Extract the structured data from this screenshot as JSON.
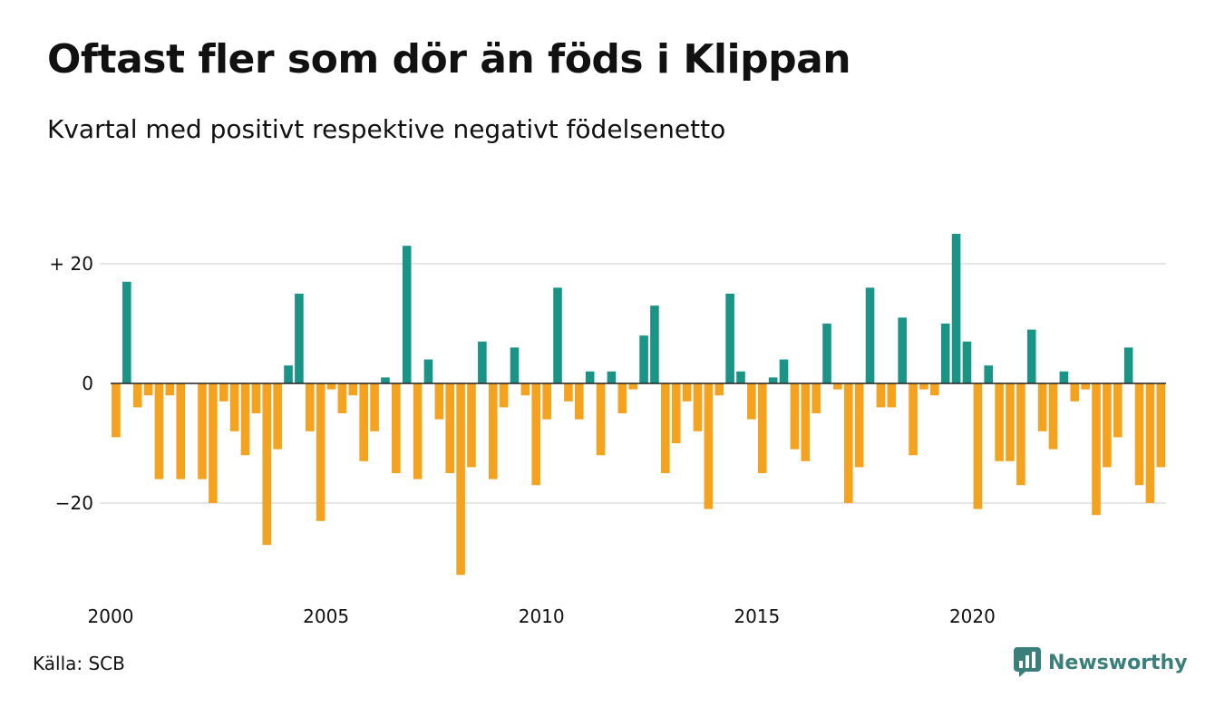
{
  "header": {
    "title": "Oftast fler som dör än föds i Klippan",
    "subtitle": "Kvartal med positivt respektive negativt födelsenetto"
  },
  "footer": {
    "source": "Källa: SCB",
    "brand": "Newsworthy",
    "brand_icon": "newsworthy-logo-icon"
  },
  "chart_data": {
    "type": "bar",
    "title": "Oftast fler som dör än föds i Klippan",
    "subtitle": "Kvartal med positivt respektive negativt födelsenetto",
    "xlabel": "",
    "ylabel": "",
    "x_start": "2000 Q1",
    "ylim": [
      -33,
      27
    ],
    "y_ticks": [
      20,
      0,
      -20
    ],
    "y_tick_labels": [
      "+ 20",
      "0",
      "−20"
    ],
    "x_tick_labels": [
      "2000",
      "2005",
      "2010",
      "2015",
      "2020"
    ],
    "grid": true,
    "colors": {
      "positive": "#1a9486",
      "negative": "#f5a21f"
    },
    "values": [
      -9,
      17,
      -4,
      -2,
      -16,
      -2,
      -16,
      0,
      -16,
      -20,
      -3,
      -8,
      -12,
      -5,
      -27,
      -11,
      3,
      15,
      -8,
      -23,
      -1,
      -5,
      -2,
      -13,
      -8,
      1,
      -15,
      23,
      -16,
      4,
      -6,
      -15,
      -32,
      -14,
      7,
      -16,
      -4,
      6,
      -2,
      -17,
      -6,
      16,
      -3,
      -6,
      2,
      -12,
      2,
      -5,
      -1,
      8,
      13,
      -15,
      -10,
      -3,
      -8,
      -21,
      -2,
      15,
      2,
      -6,
      -15,
      1,
      4,
      -11,
      -13,
      -5,
      10,
      -1,
      -20,
      -14,
      16,
      -4,
      -4,
      11,
      -12,
      -1,
      -2,
      10,
      25,
      7,
      -21,
      3,
      -13,
      -13,
      -17,
      9,
      -8,
      -11,
      2,
      -3,
      -1,
      -22,
      -14,
      -9,
      6,
      -17,
      -20,
      -14
    ]
  }
}
